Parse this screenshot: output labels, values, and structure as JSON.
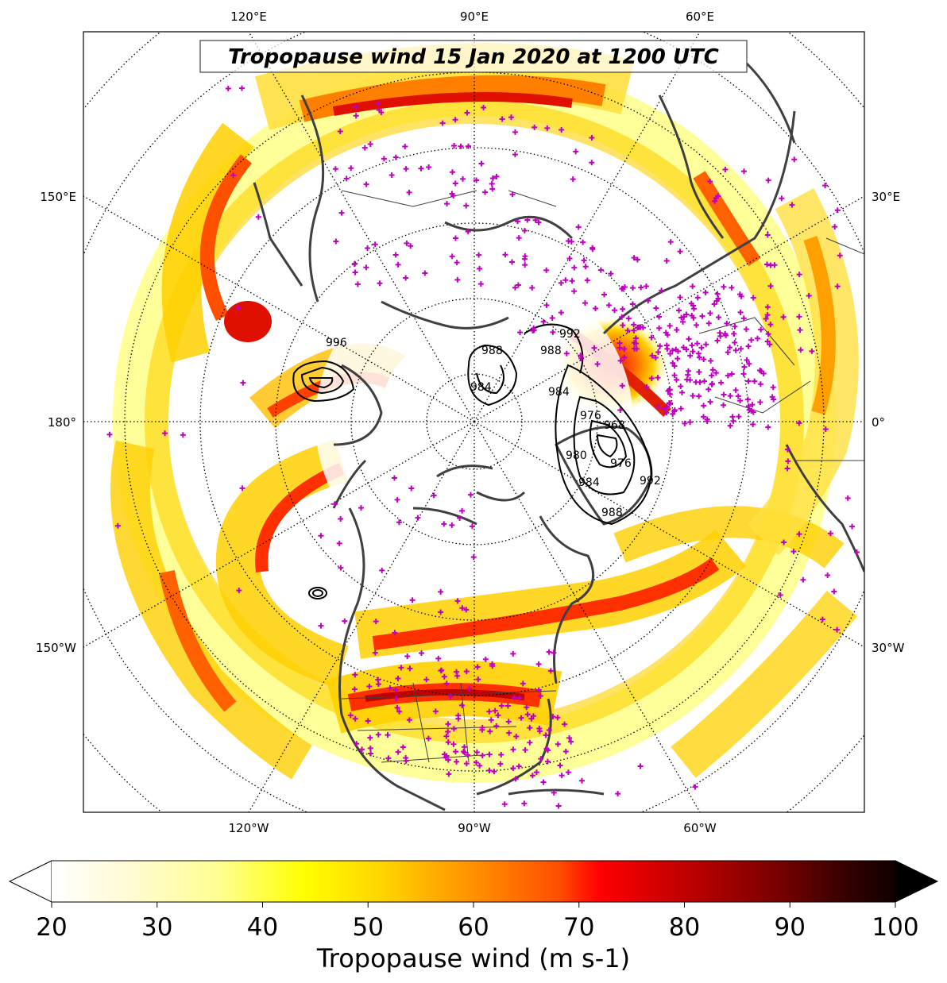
{
  "map": {
    "title": "Tropopause wind 15 Jan 2020 at 1200 UTC",
    "projection": "north-polar-stereographic",
    "longitude_labels": {
      "top": [
        "120°E",
        "90°E",
        "60°E"
      ],
      "bottom": [
        "120°W",
        "90°W",
        "60°W"
      ],
      "left": [
        "150°E",
        "180°",
        "150°W"
      ],
      "right": [
        "30°E",
        "0°",
        "30°W"
      ]
    },
    "graticule_style": "dotted",
    "coastline_color": "#404040",
    "station_marker_color": "#c000c0",
    "station_marker": "plus",
    "contour_color": "#000000",
    "pressure_contour_labels": [
      "996",
      "988",
      "984",
      "992",
      "988",
      "984",
      "976",
      "968",
      "976",
      "980",
      "984",
      "988",
      "992"
    ],
    "features": [
      "Europe/North Atlantic low-pressure system",
      "North Pacific low-pressure system",
      "jet streams over North America and Asia"
    ]
  },
  "colorbar": {
    "label": "Tropopause wind (m s-1)",
    "ticks": [
      "20",
      "30",
      "40",
      "50",
      "60",
      "70",
      "80",
      "90",
      "100"
    ],
    "min": 20,
    "max": 100,
    "extend": "both",
    "colormap": "hot_r",
    "colors": [
      "#ffffff",
      "#fffbd0",
      "#ffff80",
      "#ffff00",
      "#ffd000",
      "#ffa000",
      "#ff6000",
      "#ff0000",
      "#d00000",
      "#a00000",
      "#700000",
      "#400000",
      "#000000"
    ]
  }
}
